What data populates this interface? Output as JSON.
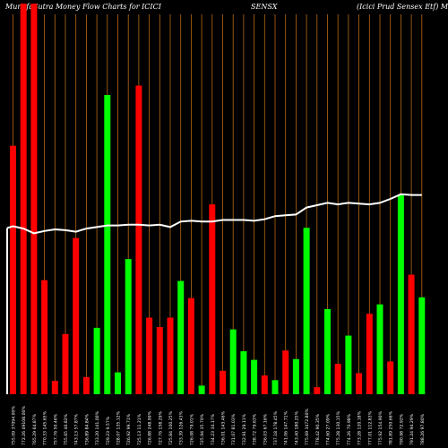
{
  "header": {
    "title_left": "MunafaSutra  Money Flow  Charts for ICICI",
    "title_mid": "SENSX",
    "title_right": "(Icici   Prud Sensex Etf) Munafa"
  },
  "chart_data": {
    "type": "bar",
    "colors": {
      "up": "#00ff00",
      "down": "#ff0000",
      "line": "#ffffff",
      "grid": "#b86a14"
    },
    "bars": [
      {
        "label": "755.09 37094.00%",
        "value": 318,
        "dir": "down"
      },
      {
        "label": "772.26 49108.00%",
        "value": 500,
        "dir": "down"
      },
      {
        "label": "765.29 64.87%",
        "value": 500,
        "dir": "down"
      },
      {
        "label": "770.33 145.65%",
        "value": 146,
        "dir": "down"
      },
      {
        "label": "757.76 50.46%",
        "value": 17,
        "dir": "down"
      },
      {
        "label": "755.65 40.82%",
        "value": 77,
        "dir": "down"
      },
      {
        "label": "743.13 57.87%",
        "value": 200,
        "dir": "down"
      },
      {
        "label": "736.89 84.84%",
        "value": 22,
        "dir": "down"
      },
      {
        "label": "733.20 141.00%",
        "value": 85,
        "dir": "up"
      },
      {
        "label": "729.23 9.57%",
        "value": 383,
        "dir": "up"
      },
      {
        "label": "728.07 135.12%",
        "value": 28,
        "dir": "up"
      },
      {
        "label": "726.92 99.71%",
        "value": 173,
        "dir": "up"
      },
      {
        "label": "725.13 11.21%",
        "value": 395,
        "dir": "down"
      },
      {
        "label": "726.88 248.99%",
        "value": 98,
        "dir": "down"
      },
      {
        "label": "727.76 158.29%",
        "value": 86,
        "dir": "down"
      },
      {
        "label": "725.84 100.25%",
        "value": 98,
        "dir": "down"
      },
      {
        "label": "733.39 126.43%",
        "value": 145,
        "dir": "up"
      },
      {
        "label": "726.08 79.01%",
        "value": 123,
        "dir": "down"
      },
      {
        "label": "725.94 35.70%",
        "value": 11,
        "dir": "up"
      },
      {
        "label": "734.23 34.17%",
        "value": 243,
        "dir": "down"
      },
      {
        "label": "736.01 143.46%",
        "value": 30,
        "dir": "down"
      },
      {
        "label": "731.07 81.03%",
        "value": 83,
        "dir": "up"
      },
      {
        "label": "732.91 29.11%",
        "value": 55,
        "dir": "up"
      },
      {
        "label": "738.72 79.63%",
        "value": 44,
        "dir": "up"
      },
      {
        "label": "736.03 67.16%",
        "value": 24,
        "dir": "down"
      },
      {
        "label": "737.18 178.45%",
        "value": 18,
        "dir": "up"
      },
      {
        "label": "741.06 147.71%",
        "value": 56,
        "dir": "down"
      },
      {
        "label": "743.40 180.25%",
        "value": 45,
        "dir": "up"
      },
      {
        "label": "775.69 3472.80%",
        "value": 213,
        "dir": "up"
      },
      {
        "label": "778.42 90.35%",
        "value": 9,
        "dir": "down"
      },
      {
        "label": "774.60 27.09%",
        "value": 109,
        "dir": "up"
      },
      {
        "label": "775.28 130.15%",
        "value": 39,
        "dir": "down"
      },
      {
        "label": "774.26 70.98%",
        "value": 75,
        "dir": "up"
      },
      {
        "label": "773.28 120.18%",
        "value": 27,
        "dir": "down"
      },
      {
        "label": "777.01 112.83%",
        "value": 103,
        "dir": "down"
      },
      {
        "label": "775.92 154.90%",
        "value": 115,
        "dir": "up"
      },
      {
        "label": "781.89 250.66%",
        "value": 42,
        "dir": "down"
      },
      {
        "label": "790.98 72.92%",
        "value": 255,
        "dir": "up"
      },
      {
        "label": "791.24 94.29%",
        "value": 153,
        "dir": "down"
      },
      {
        "label": "788.26 97.80%",
        "value": 124,
        "dir": "up"
      }
    ],
    "line": [
      215,
      212,
      206,
      209,
      211,
      210,
      208,
      212,
      214,
      216,
      216,
      217,
      217,
      216,
      217,
      214,
      221,
      222,
      221,
      221,
      223,
      223,
      223,
      222,
      224,
      228,
      229,
      230,
      239,
      242,
      245,
      243,
      245,
      244,
      243,
      245,
      250,
      256,
      255,
      255
    ],
    "ylim": [
      0,
      500
    ]
  }
}
